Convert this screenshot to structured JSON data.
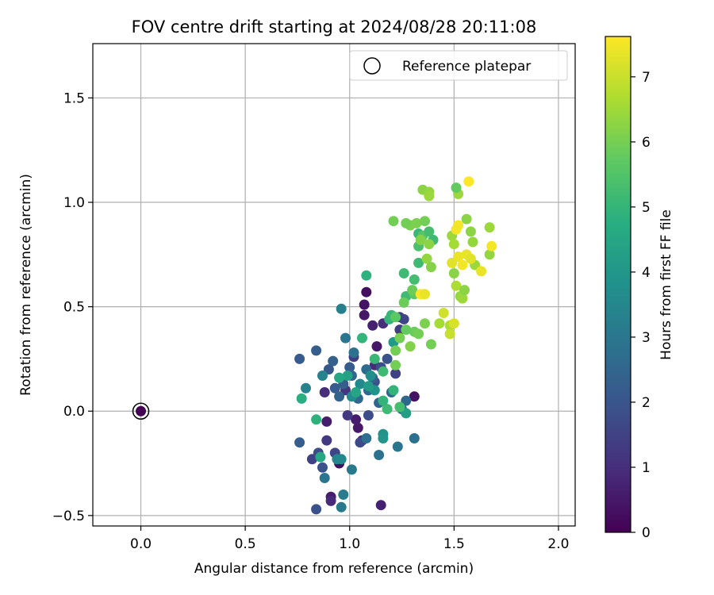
{
  "chart_data": {
    "type": "scatter",
    "title": "FOV centre drift starting at 2024/08/28 20:11:08",
    "xlabel": "Angular distance from reference (arcmin)",
    "ylabel": "Rotation from reference (arcmin)",
    "xlim": [
      -0.23,
      2.08
    ],
    "ylim": [
      -0.55,
      1.76
    ],
    "xticks": [
      0.0,
      0.5,
      1.0,
      1.5,
      2.0
    ],
    "xtick_labels": [
      "0.0",
      "0.5",
      "1.0",
      "1.5",
      "2.0"
    ],
    "yticks": [
      -0.5,
      0.0,
      0.5,
      1.0,
      1.5
    ],
    "ytick_labels": [
      "−0.5",
      "0.0",
      "0.5",
      "1.0",
      "1.5"
    ],
    "grid": true,
    "legend": {
      "position": "top-right",
      "label": "Reference platepar"
    },
    "reference_point": {
      "x": 0.0,
      "y": 0.0,
      "t": 0.0
    },
    "colorbar": {
      "label": "Hours from first FF file",
      "min": 0,
      "max": 7.62,
      "ticks": [
        0,
        1,
        2,
        3,
        4,
        5,
        6,
        7
      ],
      "tick_labels": [
        "0",
        "1",
        "2",
        "3",
        "4",
        "5",
        "6",
        "7"
      ],
      "colormap": "viridis"
    },
    "series": [
      {
        "points": [
          [
            1.08,
            0.57,
            0.3
          ],
          [
            1.07,
            0.51,
            0.4
          ],
          [
            1.07,
            0.46,
            0.5
          ],
          [
            1.15,
            -0.45,
            0.7
          ],
          [
            0.91,
            -0.41,
            0.6
          ],
          [
            0.91,
            -0.43,
            0.9
          ],
          [
            0.95,
            -0.25,
            0.3
          ],
          [
            1.04,
            -0.08,
            0.5
          ],
          [
            1.03,
            -0.04,
            0.6
          ],
          [
            1.06,
            -0.14,
            0.8
          ],
          [
            1.11,
            0.41,
            0.7
          ],
          [
            1.13,
            0.31,
            0.5
          ],
          [
            1.12,
            0.22,
            0.9
          ],
          [
            1.16,
            0.42,
            1.0
          ],
          [
            1.31,
            0.07,
            0.4
          ],
          [
            0.89,
            -0.05,
            0.6
          ],
          [
            0.88,
            0.09,
            1.0
          ],
          [
            0.98,
            0.1,
            1.2
          ],
          [
            0.99,
            -0.02,
            1.3
          ],
          [
            1.02,
            0.26,
            1.4
          ],
          [
            1.24,
            0.39,
            1.4
          ],
          [
            1.24,
            0.45,
            1.4
          ],
          [
            1.26,
            0.44,
            1.6
          ],
          [
            0.89,
            -0.14,
            1.3
          ],
          [
            0.82,
            -0.23,
            1.5
          ],
          [
            0.93,
            -0.2,
            1.6
          ],
          [
            0.85,
            -0.2,
            1.8
          ],
          [
            0.87,
            -0.27,
            1.9
          ],
          [
            0.84,
            -0.47,
            1.9
          ],
          [
            1.05,
            -0.15,
            1.7
          ],
          [
            1.09,
            -0.02,
            1.8
          ],
          [
            1.12,
            0.14,
            1.9
          ],
          [
            1.15,
            0.21,
            1.8
          ],
          [
            1.18,
            0.25,
            2.0
          ],
          [
            1.22,
            0.18,
            1.5
          ],
          [
            0.76,
            0.25,
            2.2
          ],
          [
            0.76,
            -0.15,
            2.3
          ],
          [
            0.84,
            0.29,
            2.3
          ],
          [
            0.9,
            0.2,
            2.1
          ],
          [
            0.92,
            0.24,
            2.4
          ],
          [
            0.93,
            0.11,
            2.2
          ],
          [
            0.95,
            0.07,
            2.4
          ],
          [
            0.97,
            0.13,
            2.3
          ],
          [
            1.0,
            0.21,
            2.2
          ],
          [
            1.01,
            0.17,
            2.5
          ],
          [
            1.04,
            0.06,
            2.6
          ],
          [
            1.08,
            0.2,
            2.7
          ],
          [
            1.09,
            0.1,
            2.6
          ],
          [
            1.11,
            0.16,
            2.4
          ],
          [
            1.14,
            0.04,
            2.5
          ],
          [
            1.2,
            0.09,
            2.6
          ],
          [
            1.25,
            0.01,
            2.7
          ],
          [
            1.27,
            0.05,
            2.6
          ],
          [
            0.98,
            0.35,
            3.0
          ],
          [
            1.02,
            0.28,
            2.9
          ],
          [
            1.08,
            -0.13,
            2.8
          ],
          [
            1.14,
            -0.21,
            2.9
          ],
          [
            0.88,
            -0.32,
            3.0
          ],
          [
            0.96,
            -0.46,
            3.1
          ],
          [
            0.97,
            -0.4,
            3.2
          ],
          [
            1.01,
            -0.28,
            3.1
          ],
          [
            1.23,
            -0.17,
            3.0
          ],
          [
            1.31,
            -0.13,
            2.8
          ],
          [
            0.96,
            0.49,
            3.3
          ],
          [
            0.79,
            0.11,
            3.4
          ],
          [
            0.87,
            0.17,
            3.4
          ],
          [
            0.94,
            -0.23,
            3.5
          ],
          [
            0.96,
            -0.23,
            3.6
          ],
          [
            1.01,
            0.07,
            3.7
          ],
          [
            1.05,
            0.13,
            3.6
          ],
          [
            1.1,
            0.17,
            3.8
          ],
          [
            1.12,
            0.1,
            3.9
          ],
          [
            1.16,
            -0.11,
            3.9
          ],
          [
            1.16,
            -0.13,
            4.0
          ],
          [
            1.21,
            0.33,
            4.1
          ],
          [
            1.27,
            -0.01,
            4.3
          ],
          [
            1.09,
            0.12,
            4.2
          ],
          [
            0.99,
            0.17,
            4.4
          ],
          [
            1.03,
            0.09,
            4.5
          ],
          [
            0.95,
            0.16,
            4.6
          ],
          [
            0.86,
            -0.22,
            4.6
          ],
          [
            0.77,
            0.06,
            4.8
          ],
          [
            0.84,
            -0.04,
            4.9
          ],
          [
            1.08,
            0.65,
            4.9
          ],
          [
            1.06,
            0.35,
            5.0
          ],
          [
            1.19,
            0.44,
            5.0
          ],
          [
            1.2,
            0.46,
            5.1
          ],
          [
            1.12,
            0.25,
            5.1
          ],
          [
            1.16,
            0.19,
            5.2
          ],
          [
            1.21,
            0.1,
            5.0
          ],
          [
            1.18,
            0.01,
            5.2
          ],
          [
            1.16,
            0.05,
            5.0
          ],
          [
            1.24,
            0.02,
            5.3
          ],
          [
            1.33,
            0.71,
            5.2
          ],
          [
            1.31,
            0.63,
            5.3
          ],
          [
            1.26,
            0.66,
            5.2
          ],
          [
            1.27,
            0.55,
            5.2
          ],
          [
            1.33,
            0.79,
            5.4
          ],
          [
            1.33,
            0.85,
            5.1
          ],
          [
            1.35,
            0.84,
            5.6
          ],
          [
            1.38,
            0.86,
            5.3
          ],
          [
            1.4,
            0.82,
            5.2
          ],
          [
            1.31,
            0.56,
            5.7
          ],
          [
            1.22,
            0.45,
            5.7
          ],
          [
            1.26,
            0.52,
            5.9
          ],
          [
            1.3,
            0.58,
            5.9
          ],
          [
            1.31,
            0.38,
            5.9
          ],
          [
            1.33,
            0.37,
            6.0
          ],
          [
            1.36,
            0.42,
            6.1
          ],
          [
            1.39,
            0.32,
            6.0
          ],
          [
            1.29,
            0.31,
            6.2
          ],
          [
            1.24,
            0.35,
            6.0
          ],
          [
            1.22,
            0.29,
            6.0
          ],
          [
            1.22,
            0.22,
            6.0
          ],
          [
            1.27,
            0.39,
            5.8
          ],
          [
            1.29,
            0.89,
            6.1
          ],
          [
            1.27,
            0.9,
            6.0
          ],
          [
            1.21,
            0.91,
            6.0
          ],
          [
            1.32,
            0.9,
            6.1
          ],
          [
            1.34,
            0.82,
            6.2
          ],
          [
            1.36,
            0.91,
            6.0
          ],
          [
            1.38,
            0.8,
            6.3
          ],
          [
            1.37,
            0.73,
            6.4
          ],
          [
            1.39,
            0.69,
            6.2
          ],
          [
            1.35,
            1.06,
            6.3
          ],
          [
            1.38,
            1.05,
            6.4
          ],
          [
            1.38,
            1.03,
            6.5
          ],
          [
            1.43,
            0.42,
            6.6
          ],
          [
            1.48,
            0.41,
            6.7
          ],
          [
            1.51,
            0.6,
            6.7
          ],
          [
            1.5,
            0.66,
            6.3
          ],
          [
            1.53,
            0.55,
            6.4
          ],
          [
            1.54,
            0.54,
            6.5
          ],
          [
            1.55,
            0.58,
            6.3
          ],
          [
            1.56,
            0.92,
            6.3
          ],
          [
            1.58,
            0.86,
            6.3
          ],
          [
            1.59,
            0.81,
            6.4
          ],
          [
            1.6,
            0.7,
            6.5
          ],
          [
            1.67,
            0.75,
            6.4
          ],
          [
            1.67,
            0.88,
            6.5
          ],
          [
            1.49,
            0.84,
            6.5
          ],
          [
            1.5,
            0.8,
            6.6
          ],
          [
            1.52,
            1.04,
            6.5
          ],
          [
            1.51,
            1.07,
            5.8
          ],
          [
            1.48,
            0.37,
            7.0
          ],
          [
            1.45,
            0.47,
            7.1
          ],
          [
            1.5,
            0.42,
            7.2
          ],
          [
            1.49,
            0.71,
            7.3
          ],
          [
            1.52,
            0.74,
            7.4
          ],
          [
            1.54,
            0.7,
            7.5
          ],
          [
            1.56,
            0.75,
            7.4
          ],
          [
            1.58,
            0.73,
            7.3
          ],
          [
            1.63,
            0.67,
            7.4
          ],
          [
            1.68,
            0.79,
            7.5
          ],
          [
            1.57,
            1.1,
            7.6
          ],
          [
            1.51,
            0.87,
            7.5
          ],
          [
            1.52,
            0.89,
            7.5
          ],
          [
            1.34,
            0.56,
            7.6
          ],
          [
            1.36,
            0.56,
            7.4
          ]
        ]
      }
    ]
  }
}
